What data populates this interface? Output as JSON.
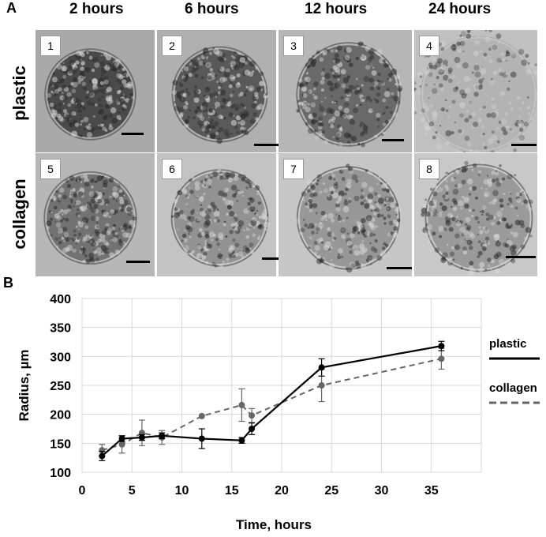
{
  "panel_a": {
    "letter": "A",
    "column_headers": [
      "2 hours",
      "6 hours",
      "12 hours",
      "24 hours"
    ],
    "row_labels": [
      "plastic",
      "collagen"
    ],
    "tiles": [
      {
        "number": "1",
        "condition": "plastic",
        "time": "2 hours",
        "bg": "#a9a9a9",
        "tone": "#3a3a3a",
        "spread": 0.0
      },
      {
        "number": "2",
        "condition": "plastic",
        "time": "6 hours",
        "bg": "#b0b0b0",
        "tone": "#4a4a4a",
        "spread": 0.15
      },
      {
        "number": "3",
        "condition": "plastic",
        "time": "12 hours",
        "bg": "#b6b6b6",
        "tone": "#5c5c5c",
        "spread": 0.35
      },
      {
        "number": "4",
        "condition": "plastic",
        "time": "24 hours",
        "bg": "#c0c0c0",
        "tone": "#9a9a9a",
        "spread": 0.8
      },
      {
        "number": "5",
        "condition": "collagen",
        "time": "2 hours",
        "bg": "#b7b7b7",
        "tone": "#666666",
        "spread": 0.05
      },
      {
        "number": "6",
        "condition": "collagen",
        "time": "6 hours",
        "bg": "#c3c3c3",
        "tone": "#8a8a8a",
        "spread": 0.2
      },
      {
        "number": "7",
        "condition": "collagen",
        "time": "12 hours",
        "bg": "#c6c6c6",
        "tone": "#8e8e8e",
        "spread": 0.3
      },
      {
        "number": "8",
        "condition": "collagen",
        "time": "24 hours",
        "bg": "#c8c8c8",
        "tone": "#929292",
        "spread": 0.45
      }
    ]
  },
  "panel_b": {
    "letter": "B"
  },
  "chart_data": {
    "type": "line",
    "title": "",
    "xlabel": "Time, hours",
    "ylabel": "Radius, µm",
    "xlim": [
      0,
      40
    ],
    "ylim": [
      100,
      400
    ],
    "xticks": [
      0,
      5,
      10,
      15,
      20,
      25,
      30,
      35
    ],
    "yticks": [
      100,
      150,
      200,
      250,
      300,
      350,
      400
    ],
    "grid": true,
    "legend_position": "right",
    "series": [
      {
        "name": "plastic",
        "color": "#000000",
        "dash": "solid",
        "x": [
          2,
          4,
          6,
          8,
          12,
          16,
          17,
          24,
          36
        ],
        "y": [
          128,
          158,
          160,
          163,
          158,
          155,
          175,
          281,
          318
        ],
        "err": [
          8,
          5,
          5,
          5,
          17,
          5,
          10,
          15,
          8
        ]
      },
      {
        "name": "collagen",
        "color": "#666666",
        "dash": "dashed",
        "x": [
          2,
          4,
          6,
          8,
          12,
          16,
          17,
          24,
          36
        ],
        "y": [
          138,
          148,
          168,
          160,
          197,
          216,
          198,
          250,
          296
        ],
        "err": [
          10,
          15,
          22,
          12,
          0,
          28,
          12,
          28,
          18
        ]
      }
    ]
  }
}
